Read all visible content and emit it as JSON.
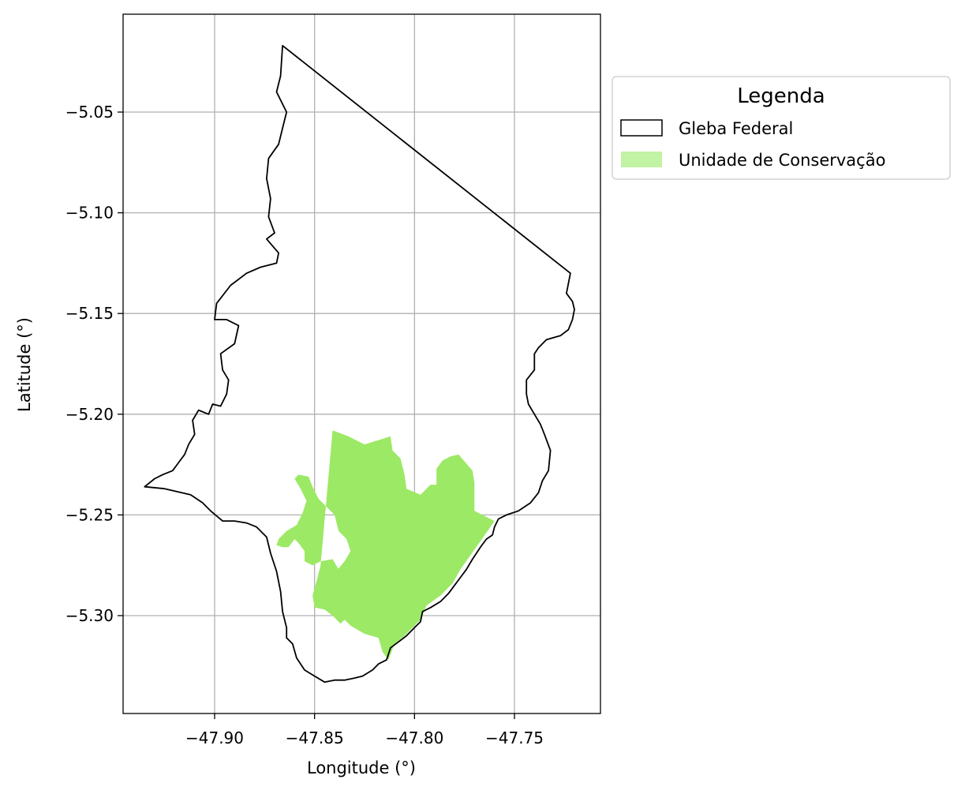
{
  "chart_data": {
    "type": "map",
    "xlabel": "Longitude (°)",
    "ylabel": "Latitude (°)",
    "x_ticks": [
      -47.9,
      -47.85,
      -47.8,
      -47.75
    ],
    "x_tick_labels": [
      "−47.90",
      "−47.85",
      "−47.80",
      "−47.75"
    ],
    "y_ticks": [
      -5.05,
      -5.1,
      -5.15,
      -5.2,
      -5.25,
      -5.3
    ],
    "y_tick_labels": [
      "−5.05",
      "−5.10",
      "−5.15",
      "−5.20",
      "−5.25",
      "−5.30"
    ],
    "grid": true,
    "legend": {
      "title": "Legenda",
      "placement": "outside-right-top",
      "entries": [
        {
          "label": "Gleba Federal",
          "style": "outline",
          "color": "#000000"
        },
        {
          "label": "Unidade de Conservação",
          "style": "fill",
          "color": "#9ce965"
        }
      ]
    },
    "layers": [
      {
        "name": "Gleba Federal",
        "stroke": "#000000",
        "fill": "none",
        "coords": [
          [
            -47.866,
            -5.017
          ],
          [
            -47.867,
            -5.032
          ],
          [
            -47.869,
            -5.04
          ],
          [
            -47.866,
            -5.046
          ],
          [
            -47.864,
            -5.05
          ],
          [
            -47.866,
            -5.058
          ],
          [
            -47.868,
            -5.066
          ],
          [
            -47.873,
            -5.073
          ],
          [
            -47.874,
            -5.083
          ],
          [
            -47.872,
            -5.093
          ],
          [
            -47.873,
            -5.102
          ],
          [
            -47.87,
            -5.11
          ],
          [
            -47.874,
            -5.113
          ],
          [
            -47.868,
            -5.12
          ],
          [
            -47.869,
            -5.125
          ],
          [
            -47.877,
            -5.127
          ],
          [
            -47.884,
            -5.13
          ],
          [
            -47.892,
            -5.136
          ],
          [
            -47.899,
            -5.145
          ],
          [
            -47.9,
            -5.153
          ],
          [
            -47.894,
            -5.153
          ],
          [
            -47.888,
            -5.156
          ],
          [
            -47.89,
            -5.165
          ],
          [
            -47.897,
            -5.17
          ],
          [
            -47.896,
            -5.178
          ],
          [
            -47.893,
            -5.183
          ],
          [
            -47.894,
            -5.19
          ],
          [
            -47.897,
            -5.196
          ],
          [
            -47.901,
            -5.195
          ],
          [
            -47.903,
            -5.2
          ],
          [
            -47.908,
            -5.198
          ],
          [
            -47.911,
            -5.203
          ],
          [
            -47.91,
            -5.21
          ],
          [
            -47.913,
            -5.215
          ],
          [
            -47.915,
            -5.22
          ],
          [
            -47.918,
            -5.224
          ],
          [
            -47.921,
            -5.228
          ],
          [
            -47.926,
            -5.23
          ],
          [
            -47.93,
            -5.232
          ],
          [
            -47.935,
            -5.236
          ],
          [
            -47.925,
            -5.237
          ],
          [
            -47.912,
            -5.24
          ],
          [
            -47.906,
            -5.244
          ],
          [
            -47.902,
            -5.248
          ],
          [
            -47.896,
            -5.253
          ],
          [
            -47.89,
            -5.253
          ],
          [
            -47.884,
            -5.254
          ],
          [
            -47.879,
            -5.256
          ],
          [
            -47.874,
            -5.261
          ],
          [
            -47.872,
            -5.269
          ],
          [
            -47.869,
            -5.278
          ],
          [
            -47.867,
            -5.288
          ],
          [
            -47.866,
            -5.298
          ],
          [
            -47.864,
            -5.306
          ],
          [
            -47.864,
            -5.311
          ],
          [
            -47.861,
            -5.314
          ],
          [
            -47.859,
            -5.321
          ],
          [
            -47.855,
            -5.327
          ],
          [
            -47.85,
            -5.33
          ],
          [
            -47.845,
            -5.333
          ],
          [
            -47.84,
            -5.332
          ],
          [
            -47.835,
            -5.332
          ],
          [
            -47.83,
            -5.331
          ],
          [
            -47.826,
            -5.33
          ],
          [
            -47.821,
            -5.327
          ],
          [
            -47.818,
            -5.324
          ],
          [
            -47.814,
            -5.322
          ],
          [
            -47.812,
            -5.316
          ],
          [
            -47.808,
            -5.313
          ],
          [
            -47.804,
            -5.31
          ],
          [
            -47.8,
            -5.306
          ],
          [
            -47.797,
            -5.303
          ],
          [
            -47.796,
            -5.298
          ],
          [
            -47.792,
            -5.296
          ],
          [
            -47.787,
            -5.293
          ],
          [
            -47.783,
            -5.289
          ],
          [
            -47.78,
            -5.285
          ],
          [
            -47.777,
            -5.281
          ],
          [
            -47.774,
            -5.277
          ],
          [
            -47.771,
            -5.272
          ],
          [
            -47.767,
            -5.266
          ],
          [
            -47.764,
            -5.262
          ],
          [
            -47.761,
            -5.26
          ],
          [
            -47.76,
            -5.256
          ],
          [
            -47.758,
            -5.252
          ],
          [
            -47.754,
            -5.25
          ],
          [
            -47.748,
            -5.248
          ],
          [
            -47.742,
            -5.244
          ],
          [
            -47.738,
            -5.239
          ],
          [
            -47.736,
            -5.233
          ],
          [
            -47.733,
            -5.228
          ],
          [
            -47.732,
            -5.218
          ],
          [
            -47.735,
            -5.21
          ],
          [
            -47.737,
            -5.205
          ],
          [
            -47.74,
            -5.2
          ],
          [
            -47.743,
            -5.195
          ],
          [
            -47.744,
            -5.19
          ],
          [
            -47.744,
            -5.183
          ],
          [
            -47.74,
            -5.178
          ],
          [
            -47.74,
            -5.17
          ],
          [
            -47.738,
            -5.167
          ],
          [
            -47.734,
            -5.163
          ],
          [
            -47.727,
            -5.161
          ],
          [
            -47.723,
            -5.158
          ],
          [
            -47.721,
            -5.153
          ],
          [
            -47.72,
            -5.148
          ],
          [
            -47.721,
            -5.144
          ],
          [
            -47.724,
            -5.14
          ],
          [
            -47.723,
            -5.135
          ],
          [
            -47.722,
            -5.13
          ],
          [
            -47.866,
            -5.017
          ]
        ]
      },
      {
        "name": "Unidade de Conservação",
        "stroke": "none",
        "fill": "#9ce965",
        "coords": [
          [
            -47.841,
            -5.208
          ],
          [
            -47.833,
            -5.211
          ],
          [
            -47.825,
            -5.215
          ],
          [
            -47.812,
            -5.211
          ],
          [
            -47.811,
            -5.218
          ],
          [
            -47.807,
            -5.222
          ],
          [
            -47.805,
            -5.23
          ],
          [
            -47.804,
            -5.237
          ],
          [
            -47.797,
            -5.24
          ],
          [
            -47.792,
            -5.235
          ],
          [
            -47.789,
            -5.235
          ],
          [
            -47.789,
            -5.227
          ],
          [
            -47.786,
            -5.223
          ],
          [
            -47.782,
            -5.221
          ],
          [
            -47.778,
            -5.22
          ],
          [
            -47.771,
            -5.228
          ],
          [
            -47.77,
            -5.234
          ],
          [
            -47.77,
            -5.248
          ],
          [
            -47.76,
            -5.253
          ],
          [
            -47.767,
            -5.263
          ],
          [
            -47.772,
            -5.27
          ],
          [
            -47.777,
            -5.277
          ],
          [
            -47.781,
            -5.284
          ],
          [
            -47.787,
            -5.29
          ],
          [
            -47.794,
            -5.295
          ],
          [
            -47.797,
            -5.302
          ],
          [
            -47.801,
            -5.306
          ],
          [
            -47.805,
            -5.31
          ],
          [
            -47.81,
            -5.314
          ],
          [
            -47.813,
            -5.322
          ],
          [
            -47.816,
            -5.318
          ],
          [
            -47.818,
            -5.311
          ],
          [
            -47.825,
            -5.309
          ],
          [
            -47.832,
            -5.305
          ],
          [
            -47.837,
            -5.3
          ],
          [
            -47.843,
            -5.297
          ],
          [
            -47.849,
            -5.296
          ],
          [
            -47.848,
            -5.289
          ],
          [
            -47.845,
            -5.285
          ],
          [
            -47.84,
            -5.279
          ],
          [
            -47.835,
            -5.273
          ],
          [
            -47.832,
            -5.268
          ],
          [
            -47.834,
            -5.262
          ],
          [
            -47.838,
            -5.258
          ],
          [
            -47.84,
            -5.25
          ],
          [
            -47.843,
            -5.247
          ],
          [
            -47.848,
            -5.242
          ],
          [
            -47.851,
            -5.236
          ],
          [
            -47.853,
            -5.231
          ],
          [
            -47.858,
            -5.23
          ],
          [
            -47.86,
            -5.232
          ],
          [
            -47.857,
            -5.237
          ],
          [
            -47.854,
            -5.243
          ],
          [
            -47.856,
            -5.249
          ],
          [
            -47.859,
            -5.255
          ],
          [
            -47.864,
            -5.258
          ],
          [
            -47.868,
            -5.262
          ],
          [
            -47.869,
            -5.265
          ],
          [
            -47.866,
            -5.266
          ],
          [
            -47.863,
            -5.266
          ],
          [
            -47.86,
            -5.262
          ],
          [
            -47.858,
            -5.264
          ],
          [
            -47.855,
            -5.268
          ],
          [
            -47.855,
            -5.273
          ],
          [
            -47.851,
            -5.275
          ],
          [
            -47.847,
            -5.273
          ],
          [
            -47.841,
            -5.272
          ],
          [
            -47.838,
            -5.277
          ],
          [
            -47.836,
            -5.281
          ],
          [
            -47.835,
            -5.287
          ],
          [
            -47.833,
            -5.291
          ],
          [
            -47.83,
            -5.295
          ],
          [
            -47.833,
            -5.3
          ],
          [
            -47.837,
            -5.304
          ],
          [
            -47.841,
            -5.3
          ],
          [
            -47.845,
            -5.297
          ],
          [
            -47.85,
            -5.296
          ],
          [
            -47.851,
            -5.29
          ],
          [
            -47.849,
            -5.283
          ],
          [
            -47.847,
            -5.275
          ],
          [
            -47.841,
            -5.208
          ]
        ]
      }
    ]
  }
}
